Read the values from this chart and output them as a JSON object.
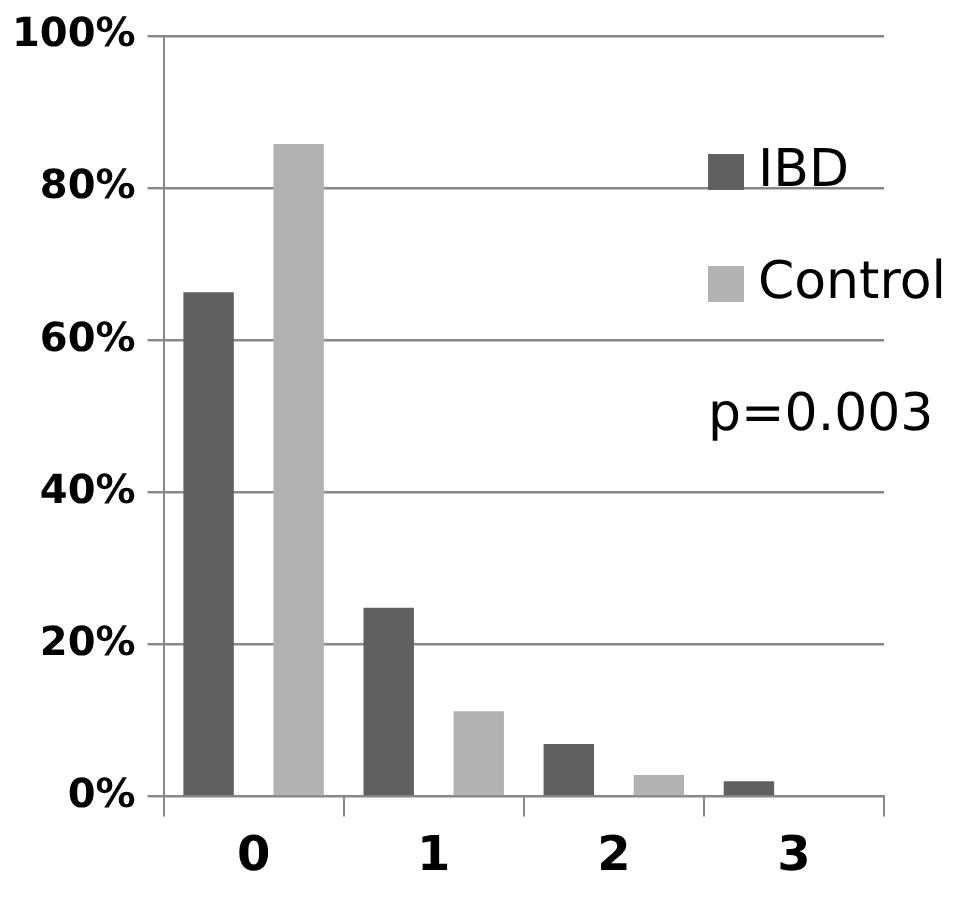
{
  "chart_data": {
    "type": "bar",
    "categories": [
      "0",
      "1",
      "2",
      "3"
    ],
    "series": [
      {
        "name": "IBD",
        "color": "#606060",
        "values": [
          66.3,
          24.8,
          6.9,
          2.0
        ]
      },
      {
        "name": "Control",
        "color": "#b2b2b2",
        "values": [
          85.8,
          11.2,
          2.8,
          0
        ]
      }
    ],
    "ylim": [
      0,
      100
    ],
    "yticks": [
      {
        "value": 0,
        "label": "0%"
      },
      {
        "value": 20,
        "label": "20%"
      },
      {
        "value": 40,
        "label": "40%"
      },
      {
        "value": 60,
        "label": "60%"
      },
      {
        "value": 80,
        "label": "80%"
      },
      {
        "value": 100,
        "label": "100%"
      }
    ],
    "grid": "y",
    "legend": "top right",
    "annotations": [
      "p=0.003"
    ]
  }
}
